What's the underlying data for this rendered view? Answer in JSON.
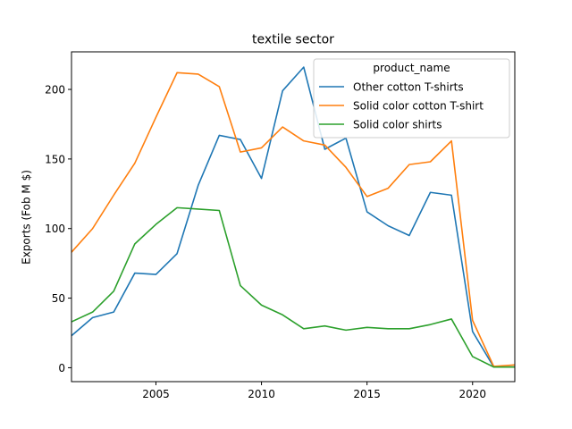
{
  "chart_data": {
    "type": "line",
    "title": "textile sector",
    "xlabel": "",
    "ylabel": "Exports (Fob M $)",
    "xlim": [
      2001,
      2022
    ],
    "ylim": [
      -10,
      227
    ],
    "xticks": [
      2005,
      2010,
      2015,
      2020
    ],
    "yticks": [
      0,
      50,
      100,
      150,
      200
    ],
    "grid": false,
    "legend": {
      "title": "product_name",
      "position": "top-right"
    },
    "x": [
      2001,
      2002,
      2003,
      2004,
      2005,
      2006,
      2007,
      2008,
      2009,
      2010,
      2011,
      2012,
      2013,
      2014,
      2015,
      2016,
      2017,
      2018,
      2019,
      2020,
      2021,
      2022
    ],
    "series": [
      {
        "name": "Other cotton T-shirts",
        "color": "#1f77b4",
        "values": [
          23,
          36,
          40,
          68,
          67,
          82,
          131,
          167,
          164,
          136,
          199,
          216,
          157,
          165,
          112,
          102,
          95,
          126,
          124,
          26,
          0.5,
          0.5
        ]
      },
      {
        "name": "Solid color cotton T-shirt",
        "color": "#ff7f0e",
        "values": [
          83,
          100,
          124,
          147,
          180,
          212,
          211,
          202,
          155,
          158,
          173,
          163,
          160,
          144,
          123,
          129,
          146,
          148,
          163,
          34,
          1,
          2
        ]
      },
      {
        "name": "Solid color shirts",
        "color": "#2ca02c",
        "values": [
          33,
          40,
          55,
          89,
          103,
          115,
          114,
          113,
          59,
          45,
          38,
          28,
          30,
          27,
          29,
          28,
          28,
          31,
          35,
          8,
          0.5,
          0.5
        ]
      }
    ]
  }
}
